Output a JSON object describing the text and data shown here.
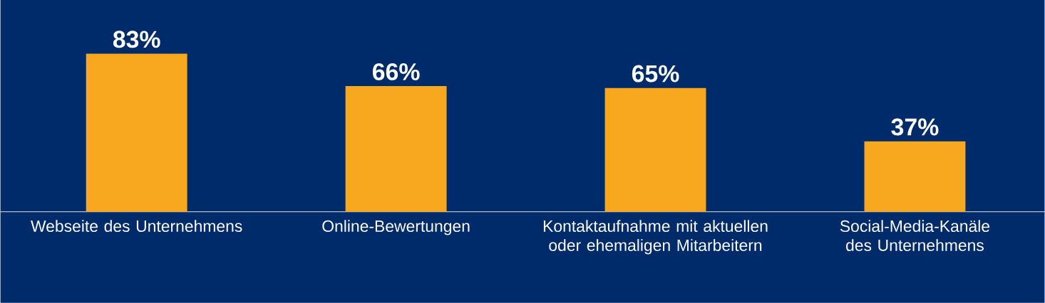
{
  "chart_data": {
    "type": "bar",
    "categories": [
      "Webseite des Unternehmens",
      "Online-Bewertungen",
      "Kontaktaufnahme mit aktuellen oder ehemaligen Mitarbeitern",
      "Social-Media-Kanäle des Unternehmens"
    ],
    "values": [
      83,
      66,
      65,
      37
    ],
    "value_labels": [
      "83%",
      "66%",
      "65%",
      "37%"
    ],
    "color": "#f7a81e"
  }
}
